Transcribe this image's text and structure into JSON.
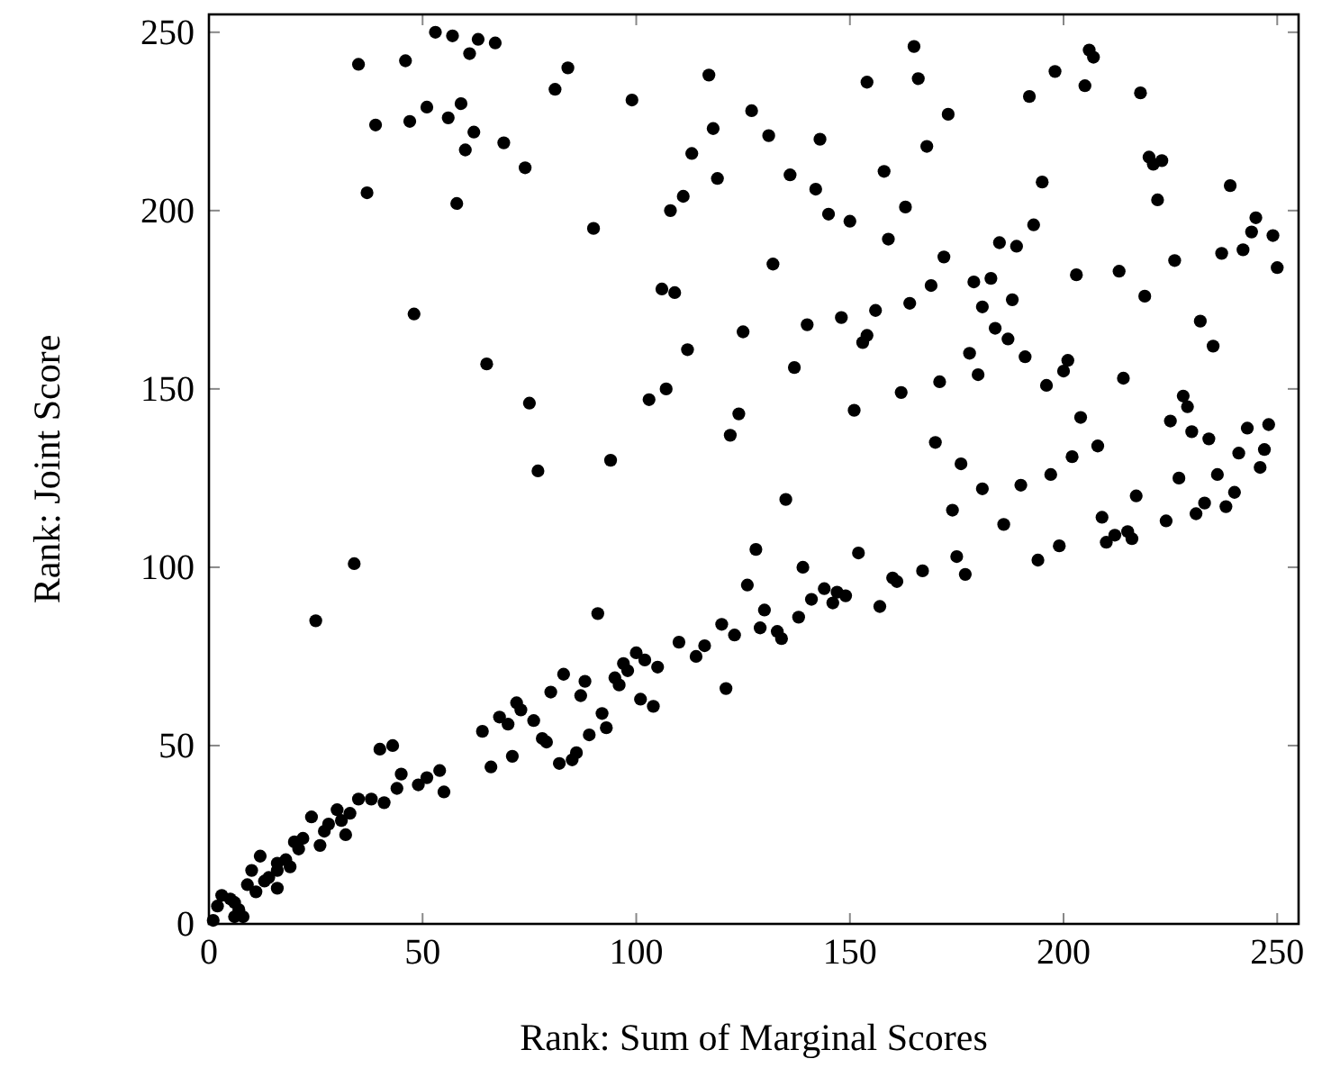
{
  "chart_data": {
    "type": "scatter",
    "xlabel": "Rank: Sum of Marginal Scores",
    "ylabel": "Rank: Joint Score",
    "xlim": [
      0,
      255
    ],
    "ylim": [
      0,
      255
    ],
    "xticks": [
      0,
      50,
      100,
      150,
      200,
      250
    ],
    "yticks": [
      0,
      50,
      100,
      150,
      200,
      250
    ],
    "grid": false,
    "marker": "circle",
    "series": [
      {
        "color": "#000000",
        "x": [
          53,
          57,
          63,
          67,
          61,
          35,
          46,
          84,
          81,
          51,
          59,
          39,
          47,
          56,
          62,
          60,
          69,
          74,
          37,
          58,
          90,
          48,
          65,
          75,
          77,
          165,
          117,
          154,
          166,
          99,
          127,
          173,
          118,
          131,
          143,
          168,
          113,
          158,
          119,
          136,
          142,
          111,
          108,
          163,
          145,
          150,
          159,
          172,
          132,
          106,
          109,
          169,
          179,
          181,
          156,
          164,
          148,
          140,
          125,
          154,
          153,
          112,
          178,
          180,
          137,
          107,
          103,
          171,
          162,
          124,
          151,
          122,
          170,
          176,
          94,
          206,
          207,
          198,
          205,
          192,
          218,
          220,
          221,
          223,
          195,
          239,
          222,
          245,
          244,
          249,
          193,
          185,
          189,
          237,
          242,
          226,
          250,
          203,
          213,
          183,
          188,
          219,
          184,
          187,
          232,
          235,
          191,
          201,
          200,
          196,
          214,
          228,
          229,
          204,
          225,
          230,
          234,
          243,
          248,
          208,
          241,
          247,
          202,
          197,
          236,
          246,
          227,
          181,
          190,
          186,
          194,
          199,
          209,
          210,
          212,
          215,
          216,
          217,
          224,
          231,
          233,
          238,
          240,
          135,
          174,
          128,
          152,
          175,
          177,
          139,
          167,
          160,
          161,
          126,
          144,
          146,
          149,
          147,
          141,
          157,
          91,
          130,
          138,
          120,
          123,
          129,
          133,
          134,
          110,
          116,
          114,
          100,
          102,
          105,
          97,
          98,
          95,
          96,
          121,
          101,
          104,
          92,
          93,
          89,
          34,
          25,
          83,
          88,
          80,
          87,
          72,
          73,
          68,
          70,
          76,
          64,
          78,
          79,
          66,
          71,
          82,
          85,
          86,
          40,
          43,
          45,
          44,
          49,
          51,
          54,
          55,
          35,
          38,
          41,
          24,
          30,
          33,
          31,
          28,
          27,
          32,
          20,
          22,
          26,
          21,
          18,
          19,
          16,
          16,
          16,
          12,
          10,
          14,
          13,
          9,
          11,
          3,
          5,
          6,
          7,
          8,
          6,
          2,
          1
        ],
        "values": [
          250,
          249,
          248,
          247,
          244,
          241,
          242,
          240,
          234,
          229,
          230,
          224,
          225,
          226,
          222,
          217,
          219,
          212,
          205,
          202,
          195,
          171,
          157,
          146,
          127,
          246,
          238,
          236,
          237,
          231,
          228,
          227,
          223,
          221,
          220,
          218,
          216,
          211,
          209,
          210,
          206,
          204,
          200,
          201,
          199,
          197,
          192,
          187,
          185,
          178,
          177,
          179,
          180,
          173,
          172,
          174,
          170,
          168,
          166,
          165,
          163,
          161,
          160,
          154,
          156,
          150,
          147,
          152,
          149,
          143,
          144,
          137,
          135,
          129,
          130,
          245,
          243,
          239,
          235,
          232,
          233,
          215,
          213,
          214,
          208,
          207,
          203,
          198,
          194,
          193,
          196,
          191,
          190,
          188,
          189,
          186,
          184,
          182,
          183,
          181,
          175,
          176,
          167,
          164,
          169,
          162,
          159,
          158,
          155,
          151,
          153,
          148,
          145,
          142,
          141,
          138,
          136,
          139,
          140,
          134,
          132,
          133,
          131,
          126,
          126,
          128,
          125,
          122,
          123,
          112,
          102,
          106,
          114,
          107,
          109,
          110,
          108,
          120,
          113,
          115,
          118,
          117,
          121,
          119,
          116,
          105,
          104,
          103,
          98,
          100,
          99,
          97,
          96,
          95,
          94,
          90,
          92,
          93,
          91,
          89,
          87,
          88,
          86,
          84,
          81,
          83,
          82,
          80,
          79,
          78,
          75,
          76,
          74,
          72,
          73,
          71,
          69,
          67,
          66,
          63,
          61,
          59,
          55,
          53,
          101,
          85,
          70,
          68,
          65,
          64,
          62,
          60,
          58,
          56,
          57,
          54,
          52,
          51,
          44,
          47,
          45,
          46,
          48,
          49,
          50,
          42,
          38,
          39,
          41,
          43,
          37,
          35,
          35,
          34,
          30,
          32,
          31,
          29,
          28,
          26,
          25,
          23,
          24,
          22,
          21,
          18,
          16,
          17,
          15,
          10,
          19,
          15,
          13,
          12,
          11,
          9,
          8,
          7,
          6,
          4,
          2,
          2,
          5,
          1
        ]
      }
    ]
  }
}
